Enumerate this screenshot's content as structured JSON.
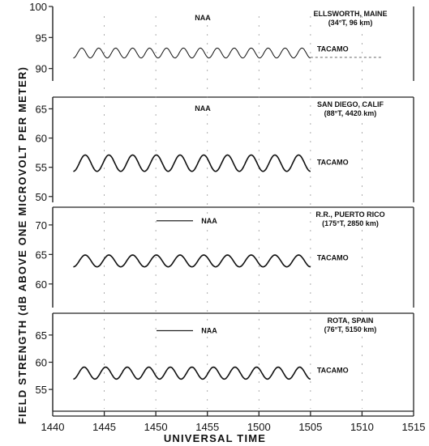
{
  "chart_data": {
    "type": "line",
    "xlabel": "UNIVERSAL TIME",
    "ylabel": "FIELD STRENGTH (dB ABOVE ONE MICROVOLT PER METER)",
    "x_ticks": [
      "1440",
      "1445",
      "1450",
      "1455",
      "1500",
      "1505",
      "1510",
      "1515"
    ],
    "panels": [
      {
        "station": [
          "ELLSWORTH, MAINE",
          "(34°T, 96 km)"
        ],
        "y_ticks": [
          "100",
          "95",
          "90"
        ],
        "ylim": [
          88,
          100
        ],
        "series": [
          {
            "name": "NAA",
            "style": "none"
          },
          {
            "name": "TACAMO",
            "base": 92.5,
            "amplitude": 0.8,
            "x_range": [
              "1442",
              "1505"
            ],
            "oscillations": 14
          },
          {
            "name": "",
            "base": 91.8,
            "amplitude": 0,
            "x_range": [
              "1505",
              "1512"
            ],
            "style": "noise"
          }
        ]
      },
      {
        "station": [
          "SAN DIEGO, CALIF",
          "(88°T, 4420 km)"
        ],
        "y_ticks": [
          "65",
          "60",
          "55",
          "50"
        ],
        "ylim": [
          49,
          67
        ],
        "series": [
          {
            "name": "NAA",
            "style": "none"
          },
          {
            "name": "TACAMO",
            "base": 55.7,
            "amplitude": 1.4,
            "x_range": [
              "1442",
              "1505"
            ],
            "oscillations": 10
          }
        ]
      },
      {
        "station": [
          "R.R., PUERTO RICO",
          "(175°T, 2850 km)"
        ],
        "y_ticks": [
          "70",
          "65",
          "60"
        ],
        "ylim": [
          56,
          73
        ],
        "series": [
          {
            "name": "NAA",
            "style": "short-line",
            "value": 70.7
          },
          {
            "name": "TACAMO",
            "base": 63.9,
            "amplitude": 1.0,
            "x_range": [
              "1442",
              "1505"
            ],
            "oscillations": 10
          }
        ]
      },
      {
        "station": [
          "ROTA, SPAIN",
          "(76°T, 5150 km)"
        ],
        "y_ticks": [
          "65",
          "60",
          "55"
        ],
        "ylim": [
          51,
          69
        ],
        "series": [
          {
            "name": "NAA",
            "style": "short-line",
            "value": 65.8
          },
          {
            "name": "TACAMO",
            "base": 58.0,
            "amplitude": 1.1,
            "x_range": [
              "1442",
              "1505"
            ],
            "oscillations": 11
          }
        ]
      }
    ]
  }
}
